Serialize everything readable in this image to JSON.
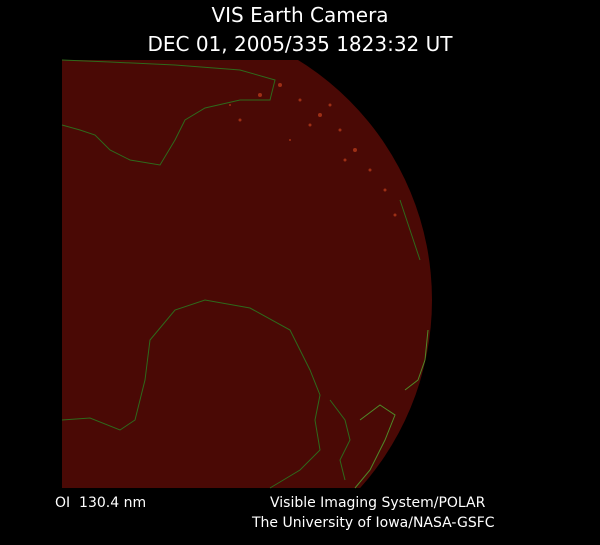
{
  "header": {
    "title": "VIS Earth Camera",
    "timestamp": "DEC 01, 2005/335 1823:32 UT"
  },
  "footer": {
    "wavelength": "OI  130.4 nm",
    "instrument": "Visible Imaging System/POLAR",
    "institution": "The University of Iowa/NASA-GSFC"
  }
}
